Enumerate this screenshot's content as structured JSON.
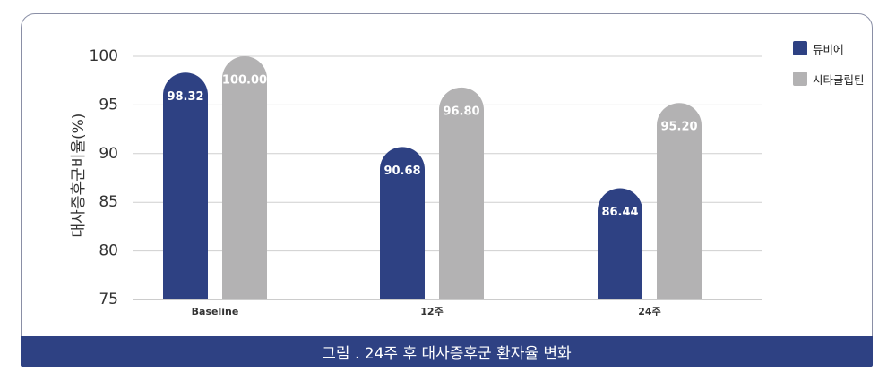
{
  "chart_data": {
    "type": "bar",
    "categories": [
      "Baseline",
      "12주",
      "24주"
    ],
    "series": [
      {
        "name": "듀비에",
        "values": [
          98.32,
          90.68,
          86.44
        ],
        "color": "#2e4183"
      },
      {
        "name": "시타글립틴",
        "values": [
          100.0,
          96.8,
          95.2
        ],
        "color": "#b3b2b3"
      }
    ],
    "data_labels": [
      [
        "98.32",
        "90.68",
        "86.44"
      ],
      [
        "100.00",
        "96.80",
        "95.20"
      ]
    ],
    "ylabel": "대사증후군비율(%)",
    "ylim": [
      75,
      100
    ],
    "yticks": [
      75,
      80,
      85,
      90,
      95,
      100
    ],
    "grid": true,
    "legend": "top-right"
  },
  "caption": "그림 . 24주 후 대사증후군 환자율 변화"
}
